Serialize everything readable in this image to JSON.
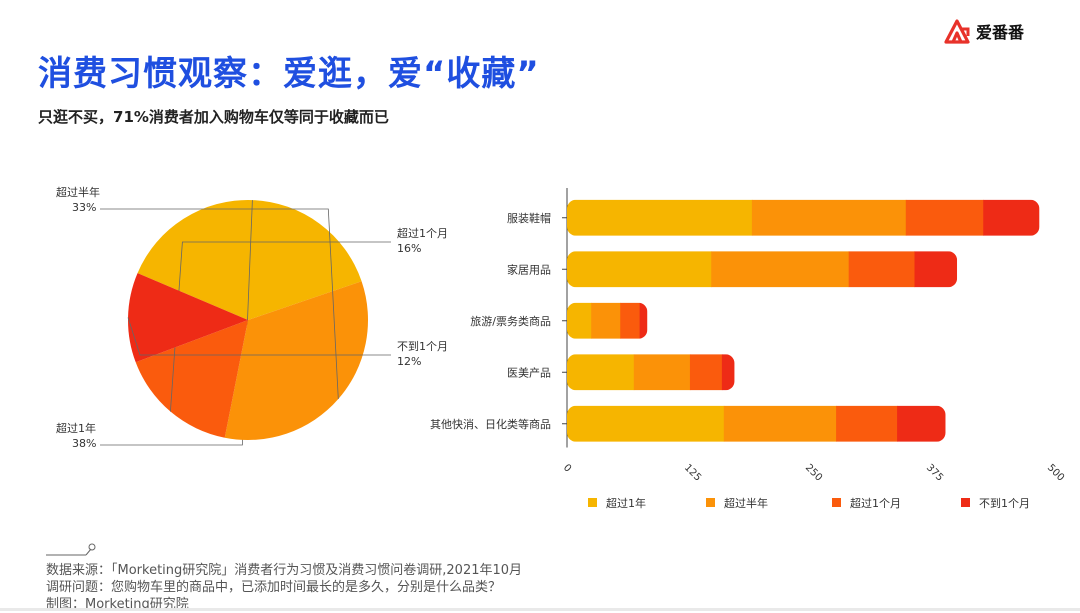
{
  "brand": {
    "name": "爱番番"
  },
  "header": {
    "title": "消费习惯观察：爱逛，爱“收藏”",
    "subtitle": "只逛不买，71%消费者加入购物车仅等同于收藏而已"
  },
  "colors": {
    "title": "#1f4fe0",
    "logo": "#e8322a"
  },
  "chart_data": [
    {
      "type": "pie",
      "slices": [
        {
          "label": "超过1年",
          "value": 38,
          "display": "38%",
          "color": "#f6b500"
        },
        {
          "label": "超过半年",
          "value": 33,
          "display": "33%",
          "color": "#fb9208"
        },
        {
          "label": "超过1个月",
          "value": 16,
          "display": "16%",
          "color": "#fa5b0d"
        },
        {
          "label": "不到1个月",
          "value": 12,
          "display": "12%",
          "color": "#ee2b16"
        }
      ]
    },
    {
      "type": "bar",
      "orientation": "horizontal",
      "stacked": true,
      "categories": [
        "服装鞋帽",
        "家居用品",
        "旅游/票务类商品",
        "医美产品",
        "其他快消、日化类等商品"
      ],
      "series": [
        {
          "name": "超过1年",
          "color": "#f6b500",
          "values": [
            191,
            149,
            25,
            69,
            162
          ]
        },
        {
          "name": "超过半年",
          "color": "#fb9208",
          "values": [
            159,
            142,
            30,
            58,
            116
          ]
        },
        {
          "name": "超过1个月",
          "color": "#fa5b0d",
          "values": [
            80,
            68,
            20,
            33,
            63
          ]
        },
        {
          "name": "不到1个月",
          "color": "#ee2b16",
          "values": [
            58,
            44,
            8,
            13,
            50
          ]
        }
      ],
      "xticks": [
        "0",
        "125",
        "250",
        "375",
        "500"
      ],
      "xlim": [
        0,
        500
      ],
      "legend": "bottom"
    }
  ],
  "footer": {
    "source": "数据来源：「Morketing研究院」消费者行为习惯及消费习惯问卷调研,2021年10月",
    "question": "调研问题：您购物车里的商品中，已添加时间最长的是多久，分别是什么品类？",
    "credit": "制图：Morketing研究院"
  }
}
